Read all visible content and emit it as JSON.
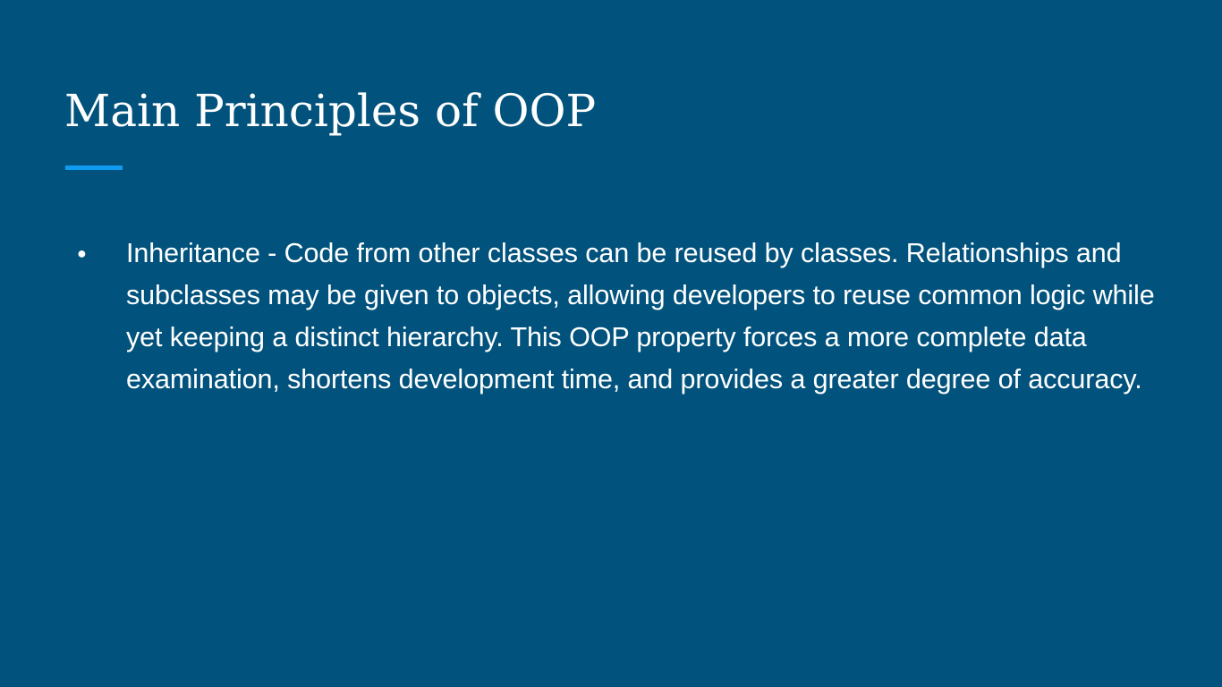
{
  "slide": {
    "title": "Main Principles of OOP",
    "bullets": [
      {
        "marker": "●",
        "text": "Inheritance - Code from other classes can be reused by classes. Relationships and subclasses may be given to objects, allowing developers to reuse common logic while yet keeping a distinct hierarchy. This OOP property forces a more complete data examination, shortens development time, and provides a greater degree of accuracy."
      }
    ]
  },
  "colors": {
    "background": "#01527c",
    "accent": "#0f9bef",
    "text": "#ffffff"
  }
}
